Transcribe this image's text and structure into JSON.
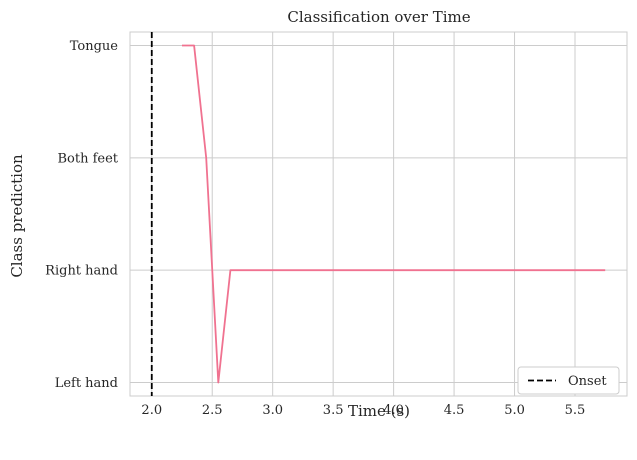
{
  "chart_data": {
    "type": "line",
    "title": "Classification over Time",
    "xlabel": "Time (s)",
    "ylabel": "Class prediction",
    "xlim": [
      1.82,
      5.93
    ],
    "ylim": [
      -0.12,
      3.12
    ],
    "x_ticks": [
      2.0,
      2.5,
      3.0,
      3.5,
      4.0,
      4.5,
      5.0,
      5.5
    ],
    "x_tick_labels": [
      "2.0",
      "2.5",
      "3.0",
      "3.5",
      "4.0",
      "4.5",
      "5.0",
      "5.5"
    ],
    "y_categories": [
      "Left hand",
      "Right hand",
      "Both feet",
      "Tongue"
    ],
    "grid": true,
    "legend_position": "lower-right",
    "series": [
      {
        "color": "#f07290",
        "x": [
          2.25,
          2.35,
          2.45,
          2.55,
          2.65,
          2.75,
          3.0,
          3.5,
          4.0,
          4.5,
          5.0,
          5.5,
          5.75
        ],
        "y": [
          3,
          3,
          2,
          0,
          1,
          1,
          1,
          1,
          1,
          1,
          1,
          1,
          1
        ]
      }
    ],
    "annotations": [
      {
        "type": "vline",
        "x": 2.0,
        "label": "Onset",
        "color": "#000000",
        "style": "dashed"
      }
    ],
    "legend": [
      {
        "label": "Onset",
        "style": "dashed",
        "color": "#000000"
      }
    ]
  }
}
